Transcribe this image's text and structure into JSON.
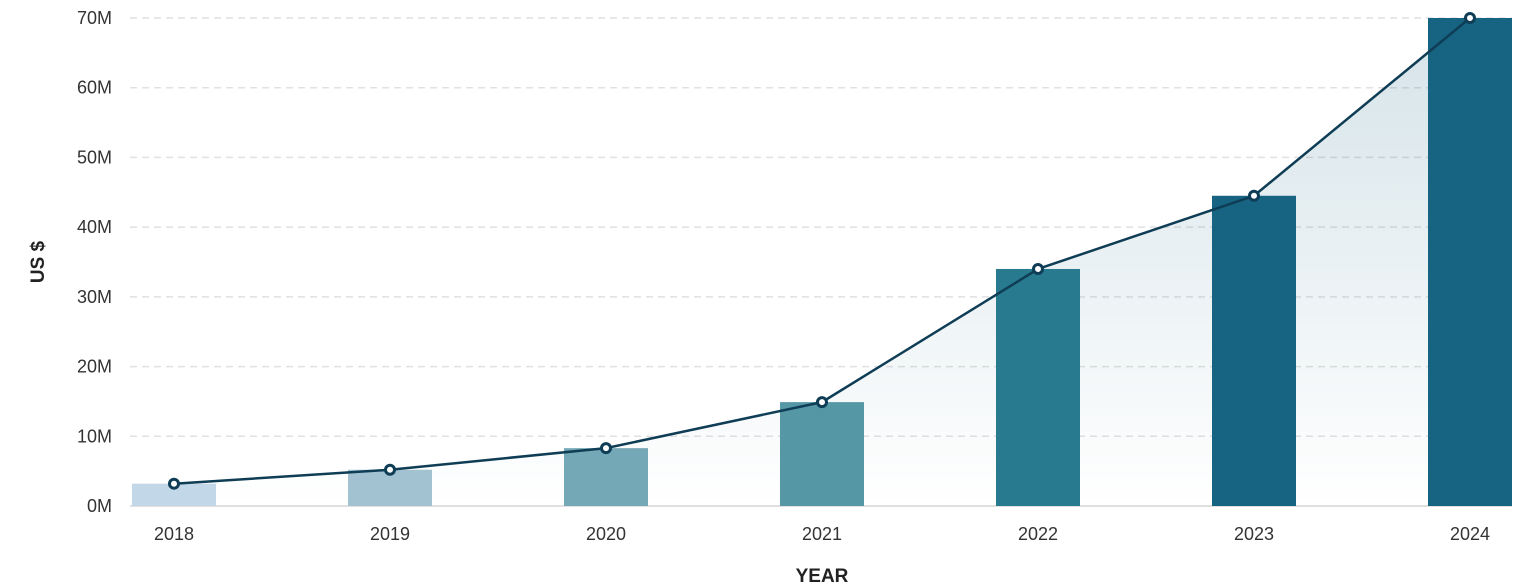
{
  "chart_data": {
    "type": "bar",
    "title": "",
    "xlabel": "YEAR",
    "ylabel": "US $",
    "categories": [
      "2018",
      "2019",
      "2020",
      "2021",
      "2022",
      "2023",
      "2024"
    ],
    "values": [
      3.2,
      5.2,
      8.3,
      14.9,
      34.0,
      44.5,
      70.0
    ],
    "line_overlay": true,
    "ylim": [
      0,
      70
    ],
    "y_ticks": [
      0,
      10,
      20,
      30,
      40,
      50,
      60,
      70
    ],
    "y_tick_labels": [
      "0M",
      "10M",
      "20M",
      "30M",
      "40M",
      "50M",
      "60M",
      "70M"
    ],
    "grid": true,
    "legend": "none",
    "bar_colors": [
      "#c2d7e8",
      "#a2c2d2",
      "#75a8b6",
      "#5597a5",
      "#287a8e",
      "#166482",
      "#166482"
    ],
    "line_color": "#0e3d55",
    "area_fill_color": "#166482"
  }
}
